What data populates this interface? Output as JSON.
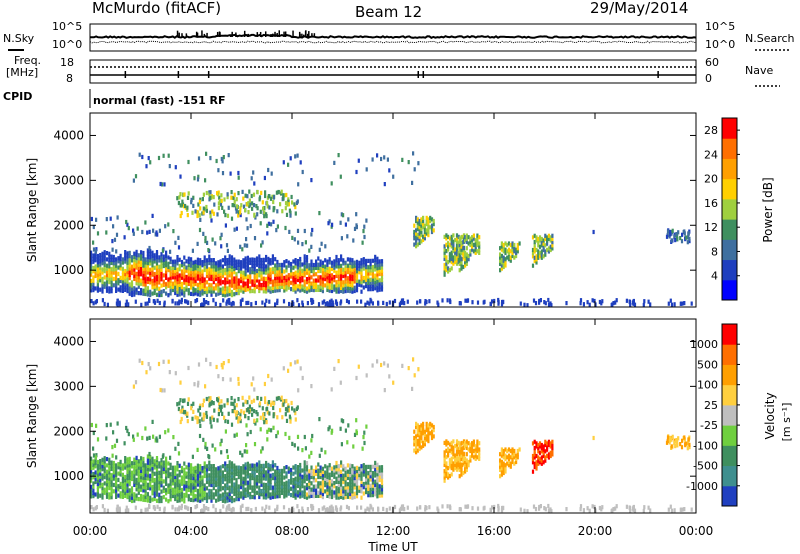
{
  "header": {
    "station": "McMurdo (fitACF)",
    "beam": "Beam 12",
    "date": "29/May/2014"
  },
  "status_panels": {
    "nsky_label": "N.Sky",
    "nsky_ticks": [
      "10^5",
      "10^0"
    ],
    "nsearch_label": "N.Search",
    "nsearch_ticks": [
      "10^5",
      "10^0"
    ],
    "freq_label_1": "Freq.",
    "freq_label_2": "[MHz]",
    "freq_ticks": [
      "18",
      "8"
    ],
    "nave_label": "Nave",
    "nave_ticks": [
      "60",
      "0"
    ],
    "cpid_label": "CPID",
    "cpid_text": "normal (fast) -151 RF"
  },
  "colors": {
    "power_scale": [
      "#0000ff",
      "#1f3fbf",
      "#3f6f9f",
      "#3f8f5f",
      "#9fcf3f",
      "#ffcf00",
      "#ff9f00",
      "#ff6f00",
      "#ff0000"
    ],
    "velocity_scale": [
      "#2040c0",
      "#3f8f8f",
      "#3f8f5f",
      "#6fcf3f",
      "#bfbfbf",
      "#ffcf3f",
      "#ff9f00",
      "#ff6f00",
      "#ff0000"
    ]
  },
  "chart_data": [
    {
      "type": "heatmap",
      "title": "Power",
      "xlabel": "Time UT",
      "ylabel": "Slant Range [km]",
      "xlim": [
        "00:00",
        "24:00"
      ],
      "ylim": [
        180,
        4500
      ],
      "x_ticks": [
        "00:00",
        "04:00",
        "08:00",
        "12:00",
        "16:00",
        "20:00",
        "00:00"
      ],
      "y_ticks": [
        "1000",
        "2000",
        "3000",
        "4000"
      ],
      "colorbar": {
        "label": "Power [dB]",
        "ticks": [
          "4",
          "8",
          "12",
          "16",
          "20",
          "24",
          "28"
        ],
        "range": [
          0,
          30
        ]
      }
    },
    {
      "type": "heatmap",
      "title": "Velocity",
      "xlabel": "Time UT",
      "ylabel": "Slant Range [km]",
      "xlim": [
        "00:00",
        "24:00"
      ],
      "ylim": [
        180,
        4500
      ],
      "x_ticks": [
        "00:00",
        "04:00",
        "08:00",
        "12:00",
        "16:00",
        "20:00",
        "00:00"
      ],
      "y_ticks": [
        "1000",
        "2000",
        "3000",
        "4000"
      ],
      "colorbar": {
        "label_main": "Velocity",
        "label_unit": "[m s⁻¹]",
        "ticks": [
          "1000",
          "500",
          "100",
          "25",
          "-25",
          "-100",
          "-500",
          "-1000"
        ]
      }
    }
  ]
}
